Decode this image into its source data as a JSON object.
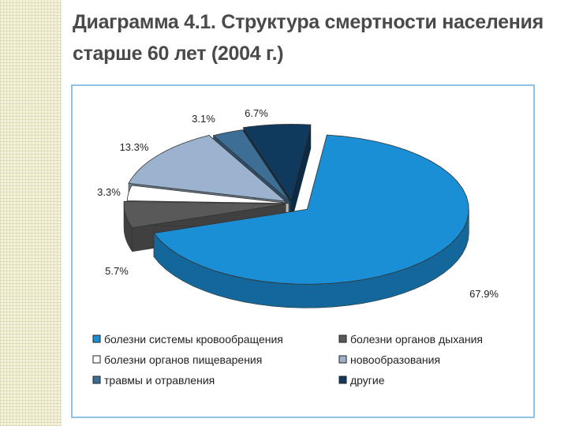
{
  "title_line1": "Диаграмма 4.1. Структура смертности населения",
  "title_line2": "старше 60 лет (2004 г.)",
  "chart_data": {
    "type": "pie",
    "style": "3d-exploded",
    "categories": [
      "болезни системы кровообращения",
      "болезни органов дыхания",
      "болезни органов пищеварения",
      "новообразования",
      "травмы и отравления",
      "другие"
    ],
    "values": [
      67.9,
      5.7,
      3.3,
      13.3,
      3.1,
      6.7
    ],
    "value_labels": [
      "67.9%",
      "5.7%",
      "3.3%",
      "13.3%",
      "3.1%",
      "6.7%"
    ],
    "colors": [
      "#1a8fd6",
      "#595959",
      "#ffffff",
      "#9bb3cf",
      "#3d6e95",
      "#0f3a5e"
    ],
    "legend_position": "bottom"
  }
}
